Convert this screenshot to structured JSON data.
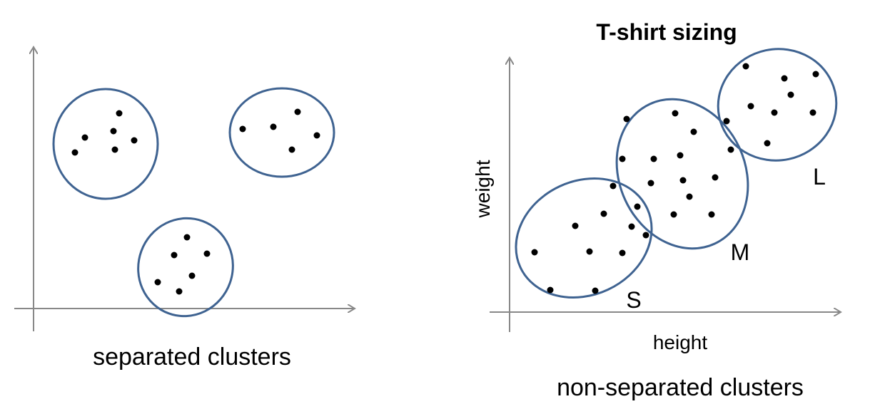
{
  "left_panel": {
    "caption": "separated clusters"
  },
  "right_panel": {
    "title": "T-shirt sizing",
    "y_axis_label": "weight",
    "x_axis_label": "height",
    "caption": "non-separated clusters",
    "clusters": [
      {
        "label": "S"
      },
      {
        "label": "M"
      },
      {
        "label": "L"
      }
    ]
  }
}
